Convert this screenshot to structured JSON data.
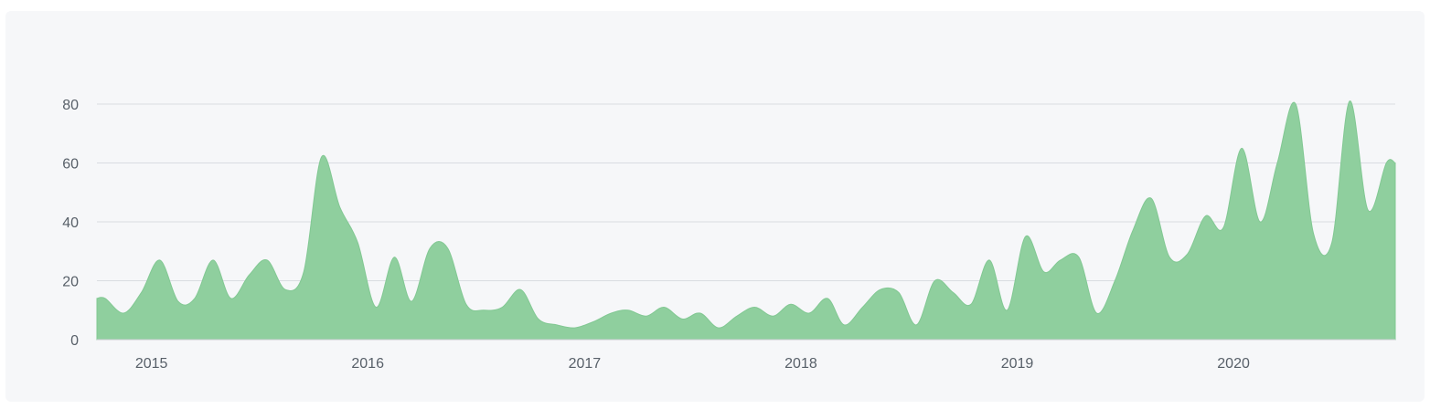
{
  "chart_data": {
    "type": "area",
    "title": "",
    "xlabel": "",
    "ylabel": "",
    "ylim": [
      0,
      80
    ],
    "yticks": [
      "0",
      "20",
      "40",
      "60",
      "80"
    ],
    "xticks": [
      "2015",
      "2016",
      "2017",
      "2018",
      "2019",
      "2020"
    ],
    "xrange": [
      "2014-10-01",
      "2020-09-30"
    ],
    "grid": true,
    "color": "#8fcf9e",
    "series": [
      {
        "x": [
          "2014-10",
          "2014-11",
          "2014-12",
          "2015-01",
          "2015-02",
          "2015-03",
          "2015-04",
          "2015-05",
          "2015-06",
          "2015-07",
          "2015-08",
          "2015-09",
          "2015-10",
          "2015-11",
          "2015-12",
          "2016-01",
          "2016-02",
          "2016-03",
          "2016-04",
          "2016-05",
          "2016-06",
          "2016-07",
          "2016-08",
          "2016-09",
          "2016-10",
          "2016-11",
          "2016-12",
          "2017-01",
          "2017-02",
          "2017-03",
          "2017-04",
          "2017-05",
          "2017-06",
          "2017-07",
          "2017-08",
          "2017-09",
          "2017-10",
          "2017-11",
          "2017-12",
          "2018-01",
          "2018-02",
          "2018-03",
          "2018-04",
          "2018-05",
          "2018-06",
          "2018-07",
          "2018-08",
          "2018-09",
          "2018-10",
          "2018-11",
          "2018-12",
          "2019-01",
          "2019-02",
          "2019-03",
          "2019-04",
          "2019-05",
          "2019-06",
          "2019-07",
          "2019-08",
          "2019-09",
          "2019-10",
          "2019-11",
          "2019-12",
          "2020-01",
          "2020-02",
          "2020-03",
          "2020-04",
          "2020-05",
          "2020-06",
          "2020-07",
          "2020-08",
          "2020-09"
        ],
        "values": [
          14,
          9,
          16,
          27,
          13,
          14,
          27,
          14,
          22,
          27,
          17,
          23,
          62,
          45,
          33,
          11,
          28,
          13,
          31,
          31,
          12,
          10,
          11,
          17,
          7,
          5,
          4,
          6,
          9,
          10,
          8,
          11,
          7,
          9,
          4,
          8,
          11,
          8,
          12,
          9,
          14,
          5,
          11,
          17,
          16,
          5,
          20,
          16,
          12,
          27,
          10,
          35,
          23,
          27,
          28,
          9,
          20,
          37,
          48,
          28,
          29,
          42,
          38,
          65,
          40,
          60,
          80,
          36,
          33,
          81,
          44,
          60
        ]
      }
    ]
  }
}
